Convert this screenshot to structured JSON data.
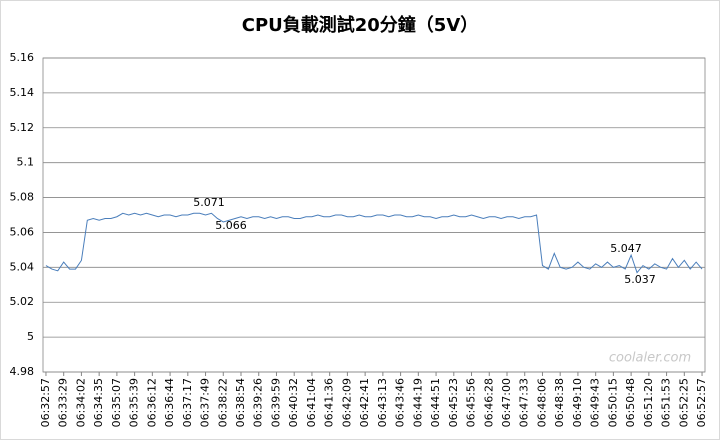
{
  "chart_data": {
    "type": "line",
    "title": "CPU負載測試20分鐘（5V）",
    "categories": [
      "06:32:57",
      null,
      null,
      "06:33:29",
      null,
      null,
      "06:34:02",
      null,
      null,
      "06:34:35",
      null,
      null,
      "06:35:07",
      null,
      null,
      "06:35:39",
      null,
      null,
      "06:36:12",
      null,
      null,
      "06:36:44",
      null,
      null,
      "06:37:17",
      null,
      null,
      "06:37:49",
      null,
      null,
      "06:38:22",
      null,
      null,
      "06:38:54",
      null,
      null,
      "06:39:26",
      null,
      null,
      "06:39:59",
      null,
      null,
      "06:40:32",
      null,
      null,
      "06:41:04",
      null,
      null,
      "06:41:36",
      null,
      null,
      "06:42:09",
      null,
      null,
      "06:42:41",
      null,
      null,
      "06:43:13",
      null,
      null,
      "06:43:46",
      null,
      null,
      "06:44:19",
      null,
      null,
      "06:44:51",
      null,
      null,
      "06:45:23",
      null,
      null,
      "06:45:56",
      null,
      null,
      "06:46:28",
      null,
      null,
      "06:47:00",
      null,
      null,
      "06:47:33",
      null,
      null,
      "06:48:06",
      null,
      null,
      "06:48:38",
      null,
      null,
      "06:49:10",
      null,
      null,
      "06:49:43",
      null,
      null,
      "06:50:15",
      null,
      null,
      "06:50:48",
      null,
      null,
      "06:51:20",
      null,
      null,
      "06:51:53",
      null,
      null,
      "06:52:25",
      null,
      null,
      "06:52:57"
    ],
    "series": [
      {
        "name": null,
        "color": "#4a7ebb",
        "values": [
          5.041,
          5.039,
          5.038,
          5.043,
          5.039,
          5.039,
          5.044,
          5.067,
          5.068,
          5.067,
          5.068,
          5.068,
          5.069,
          5.071,
          5.07,
          5.071,
          5.07,
          5.071,
          5.07,
          5.069,
          5.07,
          5.07,
          5.069,
          5.07,
          5.07,
          5.071,
          5.071,
          5.07,
          5.071,
          5.068,
          5.066,
          5.067,
          5.068,
          5.069,
          5.068,
          5.069,
          5.069,
          5.068,
          5.069,
          5.068,
          5.069,
          5.069,
          5.068,
          5.068,
          5.069,
          5.069,
          5.07,
          5.069,
          5.069,
          5.07,
          5.07,
          5.069,
          5.069,
          5.07,
          5.069,
          5.069,
          5.07,
          5.07,
          5.069,
          5.07,
          5.07,
          5.069,
          5.069,
          5.07,
          5.069,
          5.069,
          5.068,
          5.069,
          5.069,
          5.07,
          5.069,
          5.069,
          5.07,
          5.069,
          5.068,
          5.069,
          5.069,
          5.068,
          5.069,
          5.069,
          5.068,
          5.069,
          5.069,
          5.07,
          5.041,
          5.039,
          5.048,
          5.04,
          5.039,
          5.04,
          5.043,
          5.04,
          5.039,
          5.042,
          5.04,
          5.043,
          5.04,
          5.041,
          5.039,
          5.047,
          5.037,
          5.041,
          5.039,
          5.042,
          5.04,
          5.039,
          5.045,
          5.04,
          5.044,
          5.039,
          5.043,
          5.039
        ]
      }
    ],
    "ylim": [
      4.98,
      5.16
    ],
    "yticks": [
      4.98,
      5,
      5.02,
      5.04,
      5.06,
      5.08,
      5.1,
      5.12,
      5.14,
      5.16
    ],
    "grid": true,
    "annotations": [
      "5.071",
      "5.066",
      "5.047",
      "5.037"
    ],
    "watermark": "coolaler.com"
  }
}
